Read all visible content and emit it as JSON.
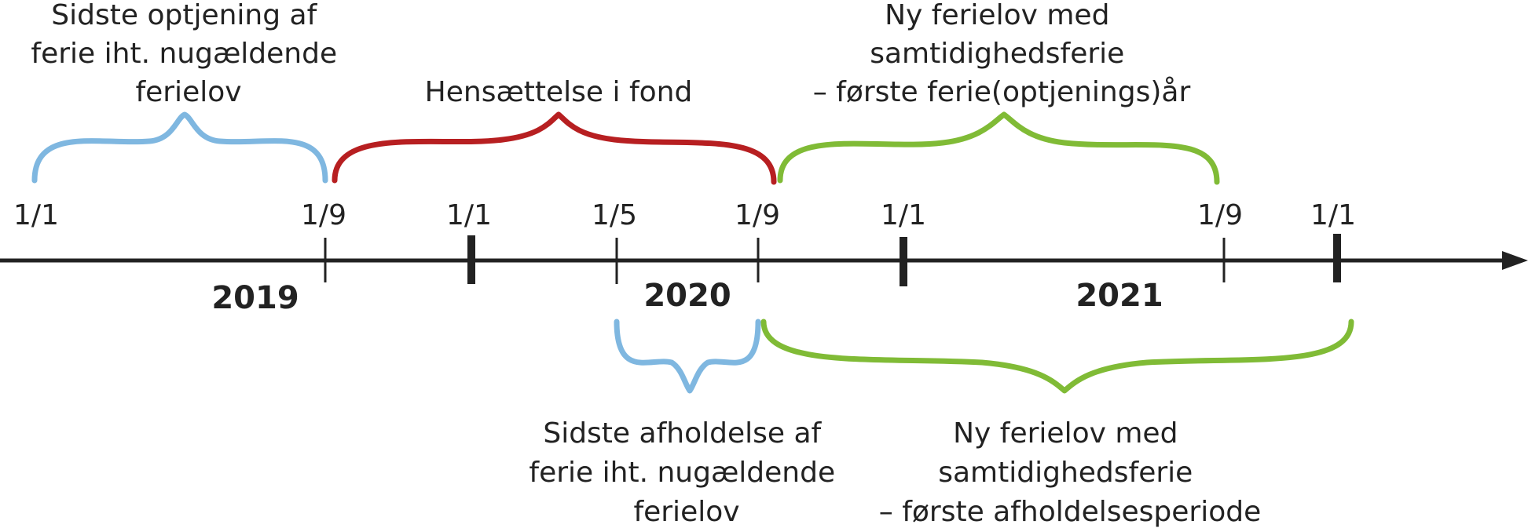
{
  "colors": {
    "axis": "#222222",
    "blue": "#7fb7e0",
    "red": "#b71f21",
    "green": "#80bb36"
  },
  "timeline": {
    "ticks": [
      {
        "id": "jan-2019",
        "label": "1/1",
        "major": false
      },
      {
        "id": "sep-2019",
        "label": "1/9",
        "major": false
      },
      {
        "id": "jan-2020",
        "label": "1/1",
        "major": true
      },
      {
        "id": "may-2020",
        "label": "1/5",
        "major": false
      },
      {
        "id": "sep-2020",
        "label": "1/9",
        "major": false
      },
      {
        "id": "jan-2021",
        "label": "1/1",
        "major": true
      },
      {
        "id": "sep-2021",
        "label": "1/9",
        "major": false
      },
      {
        "id": "jan-2022",
        "label": "1/1",
        "major": true
      }
    ],
    "years": [
      "2019",
      "2020",
      "2021"
    ]
  },
  "periods": [
    {
      "id": "old-accrual",
      "color": "blue",
      "side": "top",
      "lines": [
        "Sidste optjening af",
        "ferie iht. nugældende",
        "ferielov"
      ]
    },
    {
      "id": "fund",
      "color": "red",
      "side": "top",
      "lines": [
        "Hensættelse i fond"
      ]
    },
    {
      "id": "new-accrual",
      "color": "green",
      "side": "top",
      "lines": [
        "Ny ferielov med",
        "samtidighedsferie",
        "– første ferie(optjenings)år"
      ]
    },
    {
      "id": "old-holiday",
      "color": "blue",
      "side": "bottom",
      "lines": [
        "Sidste afholdelse af",
        "ferie iht. nugældende",
        "ferielov"
      ]
    },
    {
      "id": "new-holiday",
      "color": "green",
      "side": "bottom",
      "lines": [
        "Ny ferielov med",
        "samtidighedsferie",
        "– første afholdelsesperiode"
      ]
    }
  ]
}
